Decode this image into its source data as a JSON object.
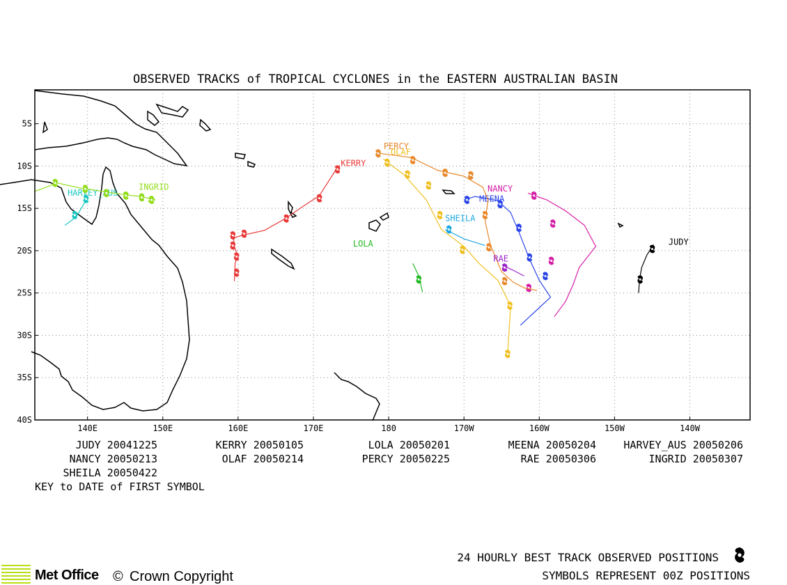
{
  "title": "OBSERVED TRACKS of TROPICAL CYCLONES in the EASTERN AUSTRALIAN BASIN",
  "map": {
    "lon_min": 133,
    "lon_max": 228,
    "lat_top": -1,
    "lat_bottom": -40,
    "x_ticks": [
      {
        "lon": 140,
        "label": "140E"
      },
      {
        "lon": 150,
        "label": "150E"
      },
      {
        "lon": 160,
        "label": "160E"
      },
      {
        "lon": 170,
        "label": "170E"
      },
      {
        "lon": 180,
        "label": "180"
      },
      {
        "lon": 190,
        "label": "170W"
      },
      {
        "lon": 200,
        "label": "160W"
      },
      {
        "lon": 210,
        "label": "150W"
      },
      {
        "lon": 220,
        "label": "140W"
      }
    ],
    "y_ticks": [
      {
        "lat": -5,
        "label": "5S"
      },
      {
        "lat": -10,
        "label": "10S"
      },
      {
        "lat": -15,
        "label": "15S"
      },
      {
        "lat": -20,
        "label": "20S"
      },
      {
        "lat": -25,
        "label": "25S"
      },
      {
        "lat": -30,
        "label": "30S"
      },
      {
        "lat": -35,
        "label": "35S"
      },
      {
        "lat": -40,
        "label": "40S"
      }
    ],
    "grid": "dotted"
  },
  "storms": [
    {
      "name": "JUDY",
      "color": "#000000",
      "label_at": [
        218.5,
        -19.3
      ],
      "track": [
        [
          213.2,
          -25
        ],
        [
          213.3,
          -23.5
        ],
        [
          213.6,
          -22
        ],
        [
          214.3,
          -20.5
        ],
        [
          215.2,
          -19.3
        ]
      ],
      "symbols": [
        [
          215,
          -19.8
        ],
        [
          213.4,
          -23.4
        ]
      ]
    },
    {
      "name": "KERRY",
      "color": "#e83a3a",
      "label_at": [
        175.3,
        -10.0
      ],
      "track": [
        [
          159.5,
          -23.6
        ],
        [
          159.6,
          -21.5
        ],
        [
          159.9,
          -20.5
        ],
        [
          159.5,
          -19.5
        ],
        [
          159.4,
          -18.5
        ],
        [
          160.5,
          -18.2
        ],
        [
          163.5,
          -17.6
        ],
        [
          166.3,
          -16.2
        ],
        [
          168.4,
          -14.9
        ],
        [
          170.8,
          -13.5
        ],
        [
          172.8,
          -10.7
        ],
        [
          173.5,
          -9.9
        ]
      ],
      "symbols": [
        [
          173.2,
          -10.4
        ],
        [
          170.8,
          -13.8
        ],
        [
          166.4,
          -16.2
        ],
        [
          160.8,
          -18
        ],
        [
          159.3,
          -18.2
        ],
        [
          159.3,
          -19.4
        ],
        [
          159.8,
          -20.7
        ],
        [
          159.8,
          -22.6
        ]
      ]
    },
    {
      "name": "LOLA",
      "color": "#22b822",
      "label_at": [
        176.6,
        -19.5
      ],
      "track": [
        [
          183.2,
          -21.5
        ],
        [
          184,
          -23
        ],
        [
          184.5,
          -24.9
        ]
      ],
      "symbols": [
        [
          184,
          -23.4
        ]
      ]
    },
    {
      "name": "MEENA",
      "color": "#2a44e8",
      "label_at": [
        193.7,
        -14.2
      ],
      "track": [
        [
          197.5,
          -28.8
        ],
        [
          201.5,
          -25.5
        ],
        [
          200,
          -23.5
        ],
        [
          198.7,
          -21
        ],
        [
          197.3,
          -17.8
        ],
        [
          196.2,
          -15.5
        ],
        [
          194.5,
          -14.1
        ],
        [
          191.5,
          -13.6
        ],
        [
          190,
          -14
        ]
      ],
      "symbols": [
        [
          190.4,
          -14
        ],
        [
          194.8,
          -14.5
        ],
        [
          197.3,
          -17.3
        ],
        [
          198.7,
          -20.8
        ],
        [
          200.8,
          -23
        ]
      ]
    },
    {
      "name": "NANCY",
      "color": "#d620a6",
      "label_at": [
        194.8,
        -13.0
      ],
      "track": [
        [
          202,
          -27.8
        ],
        [
          203.5,
          -26
        ],
        [
          204.5,
          -24
        ],
        [
          205.3,
          -22
        ],
        [
          207.5,
          -19.5
        ],
        [
          206,
          -17
        ],
        [
          203.5,
          -15.3
        ],
        [
          201,
          -14
        ],
        [
          198.5,
          -13.2
        ]
      ],
      "symbols": [
        [
          199.3,
          -13.5
        ],
        [
          201.8,
          -16.8
        ],
        [
          201.6,
          -21.2
        ],
        [
          198.6,
          -24.4
        ]
      ]
    },
    {
      "name": "OLAF",
      "color": "#f0c020",
      "label_at": [
        181.6,
        -8.7
      ],
      "track": [
        [
          179.3,
          -9.2
        ],
        [
          182,
          -11
        ],
        [
          185,
          -14
        ],
        [
          187,
          -17.5
        ],
        [
          190,
          -19.5
        ],
        [
          192,
          -21.5
        ],
        [
          194.5,
          -23.5
        ],
        [
          196.2,
          -26.5
        ],
        [
          195.8,
          -32.2
        ]
      ],
      "symbols": [
        [
          179.8,
          -9.6
        ],
        [
          182.5,
          -11
        ],
        [
          185.3,
          -12.3
        ],
        [
          186.8,
          -15.8
        ],
        [
          189.8,
          -19.9
        ],
        [
          196.1,
          -26.5
        ],
        [
          195.8,
          -32.2
        ]
      ]
    },
    {
      "name": "PERCY",
      "color": "#e8882a",
      "label_at": [
        181.0,
        -8.0
      ],
      "track": [
        [
          178.7,
          -8.5
        ],
        [
          183,
          -9
        ],
        [
          186.5,
          -10.5
        ],
        [
          190,
          -11.2
        ],
        [
          192.5,
          -12.5
        ],
        [
          193.2,
          -14
        ],
        [
          192.8,
          -16.5
        ],
        [
          193.5,
          -19.3
        ],
        [
          195,
          -22.5
        ],
        [
          196.5,
          -23.7
        ],
        [
          198,
          -24.4
        ],
        [
          199.7,
          -24.7
        ]
      ],
      "symbols": [
        [
          178.6,
          -8.5
        ],
        [
          183.2,
          -9.3
        ],
        [
          187.5,
          -10.8
        ],
        [
          190.9,
          -11.1
        ],
        [
          192.8,
          -15.8
        ],
        [
          193.3,
          -19.6
        ],
        [
          195.4,
          -23.6
        ]
      ]
    },
    {
      "name": "RAE",
      "color": "#9a24c8",
      "label_at": [
        194.9,
        -21.3
      ],
      "track": [
        [
          195.3,
          -21.8
        ],
        [
          196.5,
          -22.3
        ],
        [
          198,
          -23
        ]
      ],
      "symbols": [
        [
          195.4,
          -22
        ]
      ]
    },
    {
      "name": "SHEILA",
      "color": "#1ea8e0",
      "label_at": [
        189.5,
        -16.5
      ],
      "track": [
        [
          187.5,
          -17.5
        ],
        [
          190,
          -18.6
        ],
        [
          192.8,
          -19.4
        ]
      ],
      "symbols": [
        [
          188,
          -17.5
        ]
      ]
    },
    {
      "name": "HARVEY_AUS",
      "color": "#1ec8c0",
      "label_at": [
        140.7,
        -13.5
      ],
      "track": [
        [
          140,
          -13.5
        ],
        [
          139.5,
          -14.5
        ],
        [
          138.5,
          -16
        ],
        [
          137,
          -17
        ]
      ],
      "symbols": [
        [
          139.8,
          -13.9
        ],
        [
          138.3,
          -15.8
        ]
      ]
    },
    {
      "name": "INGRID",
      "color": "#92dc1a",
      "label_at": [
        148.8,
        -12.8
      ],
      "track": [
        [
          133,
          -13
        ],
        [
          136,
          -12
        ],
        [
          139,
          -12.6
        ],
        [
          142,
          -13
        ],
        [
          145,
          -13.4
        ],
        [
          147,
          -13.6
        ],
        [
          149,
          -14
        ],
        [
          148,
          -14.2
        ]
      ],
      "symbols": [
        [
          135.7,
          -12
        ],
        [
          139.7,
          -12.7
        ],
        [
          142.5,
          -13.2
        ],
        [
          145.1,
          -13.5
        ],
        [
          147.2,
          -13.7
        ],
        [
          148.5,
          -14
        ]
      ]
    }
  ],
  "legend": {
    "rows": [
      [
        "JUDY 20041225",
        "KERRY 20050105",
        "LOLA 20050201",
        "MEENA 20050204",
        "HARVEY_AUS 20050206"
      ],
      [
        "NANCY 20050213",
        "OLAF 20050214",
        "PERCY 20050225",
        "RAE 20050306",
        "INGRID 20050307"
      ],
      [
        "SHEILA 20050422",
        "",
        "",
        "",
        ""
      ]
    ],
    "key_text": "KEY to DATE of FIRST SYMBOL"
  },
  "footer": {
    "line1": "24 HOURLY BEST TRACK OBSERVED POSITIONS",
    "line2": "SYMBOLS REPRESENT 00Z POSITIONS",
    "logo": "Met Office",
    "copyright_symbol": "©",
    "copyright": "Crown Copyright"
  }
}
